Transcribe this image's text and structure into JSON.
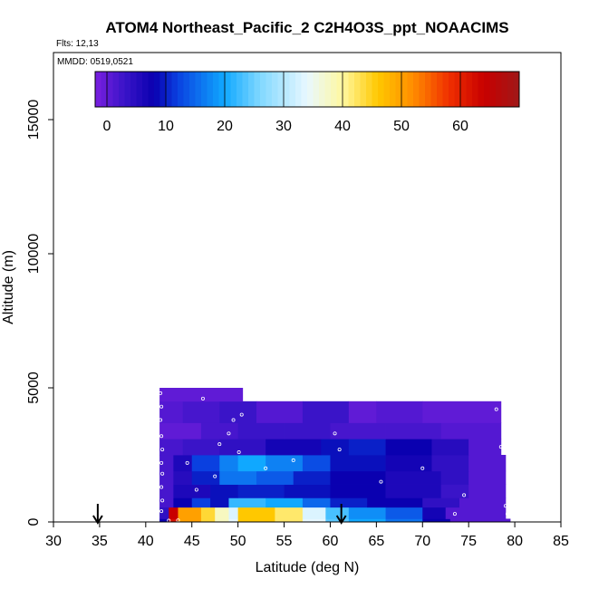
{
  "chart_data": {
    "type": "heatmap",
    "title": "ATOM4 Northeast_Pacific_2 C2H4O3S_ppt_NOAACIMS",
    "flights_label": "Flts: 12,13",
    "dates_label": "MMDD: 0519,0521",
    "xlabel": "Latitude (deg N)",
    "ylabel": "Altitude (m)",
    "xlim": [
      30,
      85
    ],
    "ylim": [
      0,
      17500
    ],
    "x_ticks": [
      30,
      35,
      40,
      45,
      50,
      55,
      60,
      65,
      70,
      75,
      80,
      85
    ],
    "y_ticks": [
      0,
      5000,
      10000,
      15000
    ],
    "colorbar": {
      "range": [
        -2,
        70
      ],
      "ticks": [
        0,
        10,
        20,
        30,
        40,
        50,
        60
      ],
      "stops": [
        {
          "v": -2,
          "c": "#7a1fe0"
        },
        {
          "v": 3,
          "c": "#3a14c8"
        },
        {
          "v": 8,
          "c": "#0a00b0"
        },
        {
          "v": 12,
          "c": "#0a40e0"
        },
        {
          "v": 20,
          "c": "#10a8ff"
        },
        {
          "v": 26,
          "c": "#80d8ff"
        },
        {
          "v": 34,
          "c": "#e8f8ff"
        },
        {
          "v": 40,
          "c": "#fff8a0"
        },
        {
          "v": 46,
          "c": "#ffc800"
        },
        {
          "v": 52,
          "c": "#ff8c00"
        },
        {
          "v": 58,
          "c": "#f03000"
        },
        {
          "v": 64,
          "c": "#c80000"
        },
        {
          "v": 70,
          "c": "#a01818"
        }
      ]
    },
    "layers": [
      {
        "alt": [
          0,
          120
        ],
        "segments": [
          [
            41.5,
            42.5,
            8
          ],
          [
            42.5,
            43.5,
            62
          ],
          [
            43.5,
            46,
            50
          ],
          [
            46,
            47.5,
            44
          ],
          [
            47.5,
            49,
            38
          ],
          [
            49,
            50,
            34
          ],
          [
            50,
            54,
            46
          ],
          [
            54,
            57,
            42
          ],
          [
            57,
            59.5,
            34
          ],
          [
            59.5,
            62,
            24
          ],
          [
            62,
            66,
            20
          ],
          [
            66,
            70,
            16
          ],
          [
            70,
            73,
            8
          ],
          [
            73,
            79.5,
            1
          ]
        ]
      },
      {
        "alt": [
          120,
          550
        ],
        "segments": [
          [
            41.5,
            42.5,
            4
          ],
          [
            42.5,
            43.5,
            64
          ],
          [
            43.5,
            46,
            50
          ],
          [
            46,
            47.5,
            44
          ],
          [
            47.5,
            49,
            38
          ],
          [
            49,
            50,
            33
          ],
          [
            50,
            54,
            46
          ],
          [
            54,
            57,
            42
          ],
          [
            57,
            59.5,
            33
          ],
          [
            59.5,
            62,
            23
          ],
          [
            62,
            66,
            18
          ],
          [
            66,
            70,
            14
          ],
          [
            70,
            72.5,
            7
          ],
          [
            72.5,
            79,
            1
          ]
        ]
      },
      {
        "alt": [
          550,
          900
        ],
        "segments": [
          [
            41.5,
            43,
            2
          ],
          [
            43,
            45,
            8
          ],
          [
            45,
            47,
            12
          ],
          [
            47,
            49,
            9
          ],
          [
            49,
            53,
            22
          ],
          [
            53,
            57,
            20
          ],
          [
            57,
            60,
            15
          ],
          [
            60,
            64,
            10
          ],
          [
            64,
            70,
            8
          ],
          [
            70,
            74,
            4
          ],
          [
            74,
            79,
            1
          ]
        ]
      },
      {
        "alt": [
          900,
          1400
        ],
        "segments": [
          [
            41.5,
            43,
            2
          ],
          [
            43,
            47,
            6
          ],
          [
            47,
            50,
            9
          ],
          [
            50,
            55,
            10
          ],
          [
            55,
            60,
            9
          ],
          [
            60,
            66,
            8
          ],
          [
            66,
            72,
            6
          ],
          [
            72,
            75,
            3
          ],
          [
            75,
            79,
            1
          ]
        ]
      },
      {
        "alt": [
          1400,
          1900
        ],
        "segments": [
          [
            41.5,
            43,
            2
          ],
          [
            43,
            45,
            5
          ],
          [
            45,
            48,
            10
          ],
          [
            48,
            52,
            16
          ],
          [
            52,
            56,
            14
          ],
          [
            56,
            60,
            10
          ],
          [
            60,
            66,
            8
          ],
          [
            66,
            72,
            6
          ],
          [
            72,
            75,
            4
          ],
          [
            75,
            79,
            1
          ]
        ]
      },
      {
        "alt": [
          1900,
          2500
        ],
        "segments": [
          [
            41.5,
            43,
            2
          ],
          [
            43,
            45,
            6
          ],
          [
            45,
            48,
            12
          ],
          [
            48,
            50,
            17
          ],
          [
            50,
            53,
            20
          ],
          [
            53,
            57,
            17
          ],
          [
            57,
            60,
            13
          ],
          [
            60,
            66,
            9
          ],
          [
            66,
            71,
            7
          ],
          [
            71,
            75,
            4
          ],
          [
            75,
            79,
            1
          ]
        ]
      },
      {
        "alt": [
          2500,
          3100
        ],
        "segments": [
          [
            41.5,
            44,
            2
          ],
          [
            44,
            48,
            3
          ],
          [
            48,
            53,
            4
          ],
          [
            53,
            59,
            7
          ],
          [
            59,
            62,
            9
          ],
          [
            62,
            66,
            10
          ],
          [
            66,
            71,
            8
          ],
          [
            71,
            75,
            5
          ],
          [
            75,
            78.5,
            1
          ]
        ]
      },
      {
        "alt": [
          3100,
          3700
        ],
        "segments": [
          [
            41.5,
            46,
            0
          ],
          [
            46,
            50,
            2
          ],
          [
            50,
            55,
            3
          ],
          [
            55,
            60,
            3
          ],
          [
            60,
            66,
            2
          ],
          [
            66,
            72,
            2
          ],
          [
            72,
            78.5,
            1
          ]
        ]
      },
      {
        "alt": [
          3700,
          4500
        ],
        "segments": [
          [
            41.5,
            44,
            1
          ],
          [
            44,
            48,
            2
          ],
          [
            48,
            52,
            3
          ],
          [
            52,
            57,
            1
          ],
          [
            57,
            62,
            3
          ],
          [
            62,
            65,
            0
          ],
          [
            65,
            70,
            1
          ],
          [
            70,
            78.5,
            0
          ]
        ]
      },
      {
        "alt": [
          4500,
          5000
        ],
        "segments": [
          [
            41.5,
            50.5,
            0
          ]
        ]
      }
    ],
    "sample_points": [
      [
        41.6,
        4800
      ],
      [
        41.7,
        4300
      ],
      [
        41.6,
        3800
      ],
      [
        41.7,
        3200
      ],
      [
        41.8,
        2700
      ],
      [
        41.7,
        2200
      ],
      [
        41.8,
        1800
      ],
      [
        41.7,
        1300
      ],
      [
        41.8,
        800
      ],
      [
        41.7,
        400
      ],
      [
        42.5,
        50
      ],
      [
        43.5,
        60
      ],
      [
        44.5,
        2200
      ],
      [
        45.5,
        1200
      ],
      [
        46.2,
        4600
      ],
      [
        47.5,
        1700
      ],
      [
        48.0,
        2900
      ],
      [
        49.0,
        3300
      ],
      [
        49.5,
        3800
      ],
      [
        50.1,
        2600
      ],
      [
        50.4,
        4000
      ],
      [
        53.0,
        2000
      ],
      [
        56.0,
        2300
      ],
      [
        60.5,
        3300
      ],
      [
        61.0,
        2700
      ],
      [
        65.5,
        1500
      ],
      [
        70.0,
        2000
      ],
      [
        73.5,
        300
      ],
      [
        74.5,
        1000
      ],
      [
        78.0,
        4200
      ],
      [
        78.5,
        2800
      ],
      [
        79.0,
        600
      ],
      [
        79.2,
        300
      ]
    ],
    "flight_markers": [
      34.8,
      61.2
    ]
  }
}
